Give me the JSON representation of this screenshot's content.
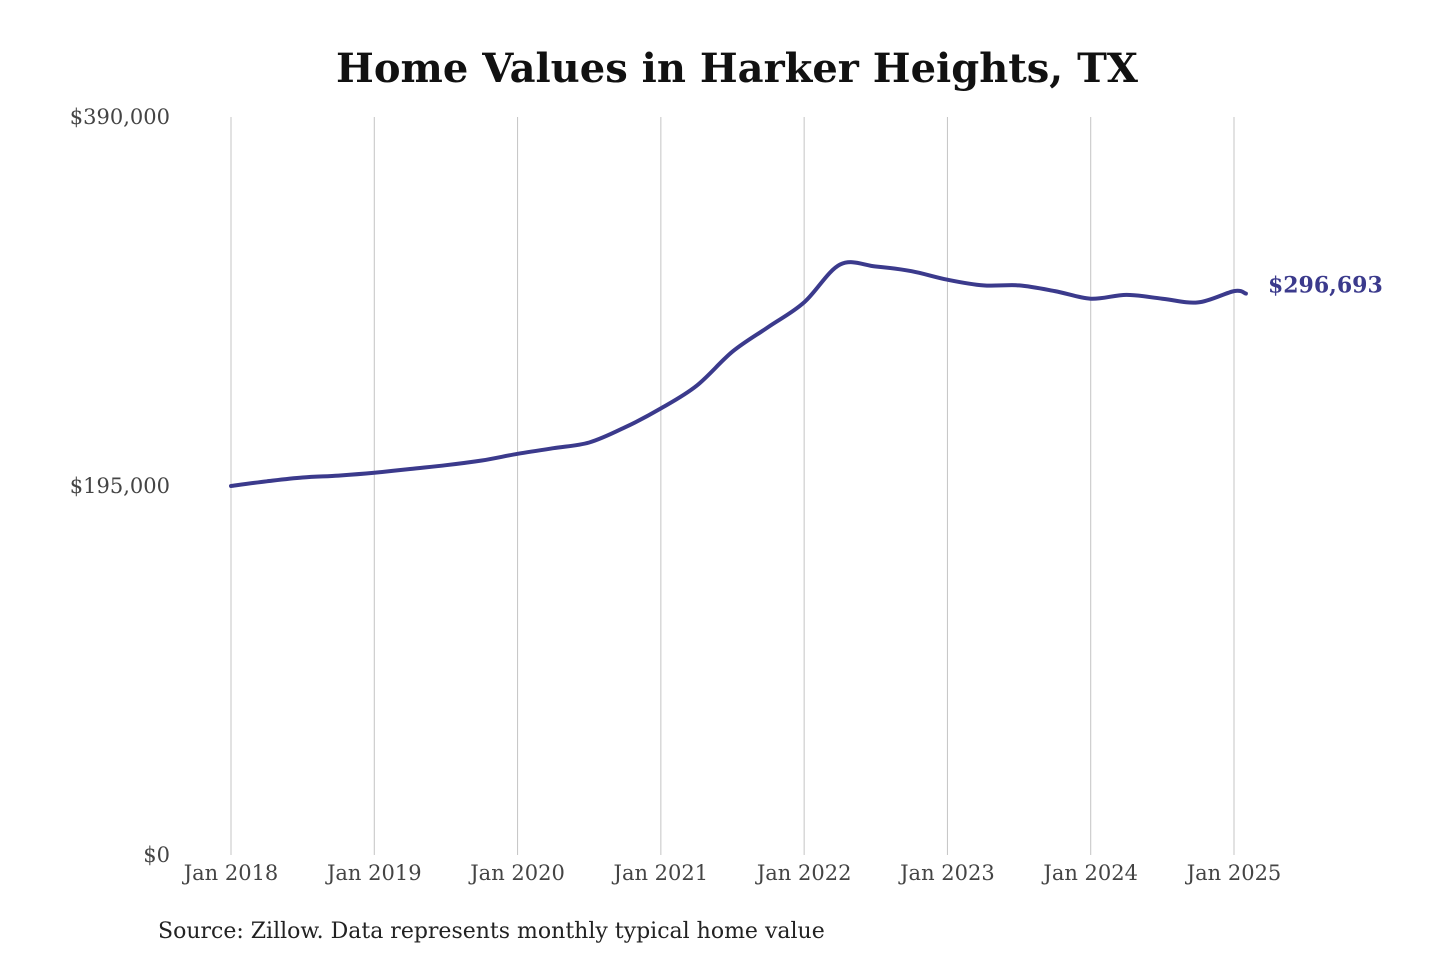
{
  "chart_data": {
    "type": "line",
    "title": "Home Values in Harker Heights, TX",
    "source": "Source: Zillow. Data represents monthly typical home value",
    "y_ticks": [
      "$390,000",
      "$195,000",
      "$0"
    ],
    "y_tick_values": [
      390000,
      195000,
      0
    ],
    "x_ticks": [
      "Jan 2018",
      "Jan 2019",
      "Jan 2020",
      "Jan 2021",
      "Jan 2022",
      "Jan 2023",
      "Jan 2024",
      "Jan 2025"
    ],
    "ylim": [
      0,
      390000
    ],
    "grid": "vertical",
    "line_color": "#3b3a8c",
    "end_label": "$296,693",
    "series": [
      {
        "x": [
          "2018-01",
          "2018-04",
          "2018-07",
          "2018-10",
          "2019-01",
          "2019-04",
          "2019-07",
          "2019-10",
          "2020-01",
          "2020-04",
          "2020-07",
          "2020-10",
          "2021-01",
          "2021-04",
          "2021-07",
          "2021-10",
          "2022-01",
          "2022-04",
          "2022-07",
          "2022-10",
          "2023-01",
          "2023-04",
          "2023-07",
          "2023-10",
          "2024-01",
          "2024-04",
          "2024-07",
          "2024-10",
          "2025-01",
          "2025-02"
        ],
        "values": [
          195000,
          197500,
          199500,
          200500,
          202000,
          204000,
          206000,
          208500,
          212000,
          215000,
          218000,
          226000,
          236000,
          248000,
          266000,
          279000,
          292000,
          312000,
          311000,
          308500,
          304000,
          301000,
          301000,
          298000,
          294000,
          296000,
          294000,
          292000,
          298000,
          296693
        ]
      }
    ]
  }
}
